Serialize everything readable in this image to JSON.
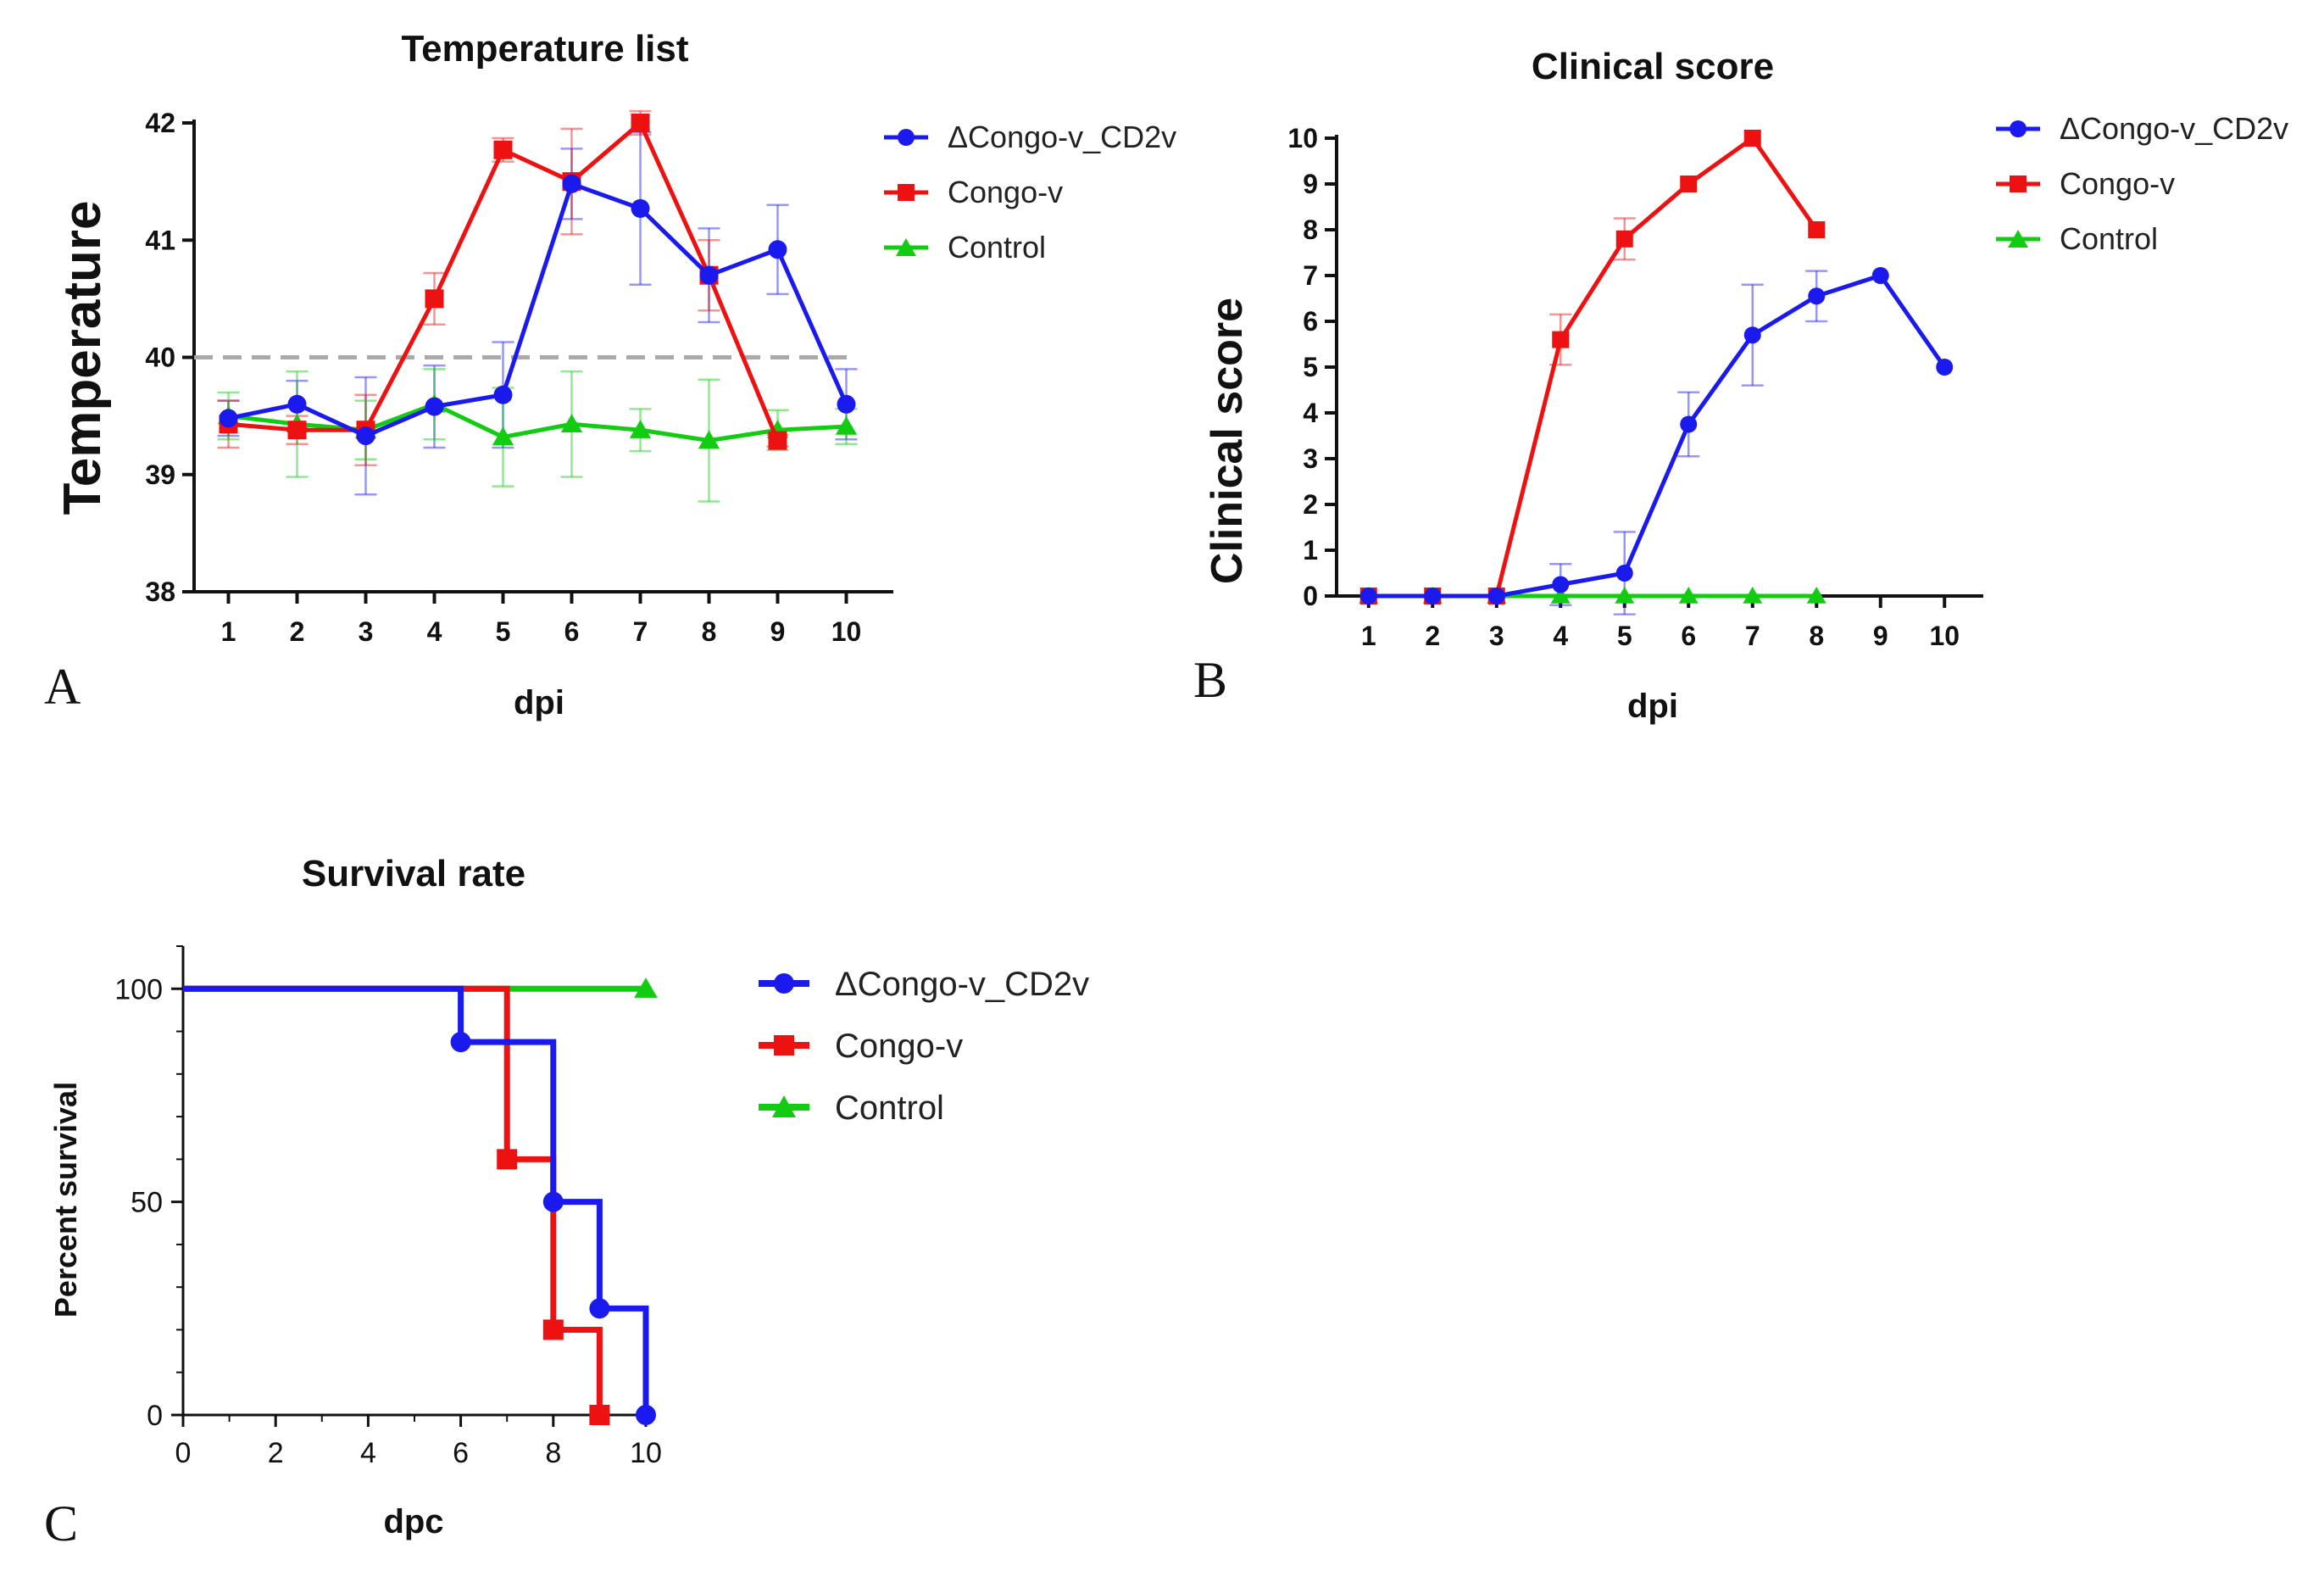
{
  "colors": {
    "blue": "#1a1aee",
    "red": "#ee1111",
    "green": "#11cc11",
    "threshold": "#aaaaaa"
  },
  "legend": [
    "ΔCongo-v_CD2v",
    "Congo-v",
    "Control"
  ],
  "chart_data": [
    {
      "panel": "A",
      "type": "line",
      "title": "Temperature list",
      "xlabel": "dpi",
      "ylabel": "Temperature",
      "categories": [
        "1",
        "2",
        "3",
        "4",
        "5",
        "6",
        "7",
        "8",
        "9",
        "10"
      ],
      "ylim": [
        38,
        42
      ],
      "yticks": [
        "38",
        "39",
        "40",
        "41",
        "42"
      ],
      "reference_line": {
        "y": 40,
        "style": "dashed"
      },
      "series": [
        {
          "name": "ΔCongo-v_CD2v",
          "marker": "circle",
          "color": "blue",
          "x": [
            1,
            2,
            3,
            4,
            5,
            6,
            7,
            8,
            9,
            10
          ],
          "values": [
            39.48,
            39.6,
            39.33,
            39.58,
            39.68,
            41.48,
            41.27,
            40.7,
            40.92,
            39.6
          ],
          "errors": [
            0.15,
            0.2,
            0.5,
            0.35,
            0.45,
            0.3,
            0.65,
            0.4,
            0.38,
            0.3
          ]
        },
        {
          "name": "Congo-v",
          "marker": "square",
          "color": "red",
          "x": [
            1,
            2,
            3,
            4,
            5,
            6,
            7,
            8,
            9
          ],
          "values": [
            39.43,
            39.38,
            39.38,
            40.5,
            41.77,
            41.5,
            42.0,
            40.7,
            39.29
          ],
          "errors": [
            0.2,
            0.12,
            0.3,
            0.22,
            0.1,
            0.45,
            0.1,
            0.3,
            0.05
          ]
        },
        {
          "name": "Control",
          "marker": "triangle",
          "color": "green",
          "x": [
            1,
            2,
            3,
            4,
            5,
            6,
            7,
            8,
            9,
            10
          ],
          "values": [
            39.5,
            39.43,
            39.38,
            39.6,
            39.32,
            39.43,
            39.38,
            39.29,
            39.38,
            39.41
          ],
          "errors": [
            0.2,
            0.45,
            0.25,
            0.3,
            0.42,
            0.45,
            0.18,
            0.52,
            0.17,
            0.15
          ]
        }
      ]
    },
    {
      "panel": "B",
      "type": "line",
      "title": "Clinical score",
      "xlabel": "dpi",
      "ylabel": "Clinical score",
      "categories": [
        "1",
        "2",
        "3",
        "4",
        "5",
        "6",
        "7",
        "8",
        "9",
        "10"
      ],
      "ylim": [
        0,
        10
      ],
      "yticks": [
        "0",
        "1",
        "2",
        "3",
        "4",
        "5",
        "6",
        "7",
        "8",
        "9",
        "10"
      ],
      "series": [
        {
          "name": "ΔCongo-v_CD2v",
          "marker": "circle",
          "color": "blue",
          "x": [
            1,
            2,
            3,
            4,
            5,
            6,
            7,
            8,
            9,
            10
          ],
          "values": [
            0,
            0,
            0,
            0.25,
            0.5,
            3.75,
            5.7,
            6.55,
            7.0,
            5.0
          ],
          "errors": [
            0,
            0,
            0,
            0.45,
            0.9,
            0.7,
            1.1,
            0.55,
            0,
            0
          ]
        },
        {
          "name": "Congo-v",
          "marker": "square",
          "color": "red",
          "x": [
            1,
            2,
            3,
            4,
            5,
            6,
            7,
            8
          ],
          "values": [
            0,
            0,
            0,
            5.6,
            7.8,
            9.0,
            10.0,
            8.0
          ],
          "errors": [
            0,
            0,
            0,
            0.55,
            0.45,
            0,
            0,
            0
          ]
        },
        {
          "name": "Control",
          "marker": "triangle",
          "color": "green",
          "x": [
            1,
            2,
            3,
            4,
            5,
            6,
            7,
            8
          ],
          "values": [
            0,
            0,
            0,
            0,
            0,
            0,
            0,
            0
          ],
          "errors": [
            0,
            0,
            0,
            0,
            0,
            0,
            0,
            0
          ]
        }
      ]
    },
    {
      "panel": "C",
      "type": "step",
      "title": "Survival rate",
      "xlabel": "dpc",
      "ylabel": "Percent survival",
      "xlim": [
        0,
        10
      ],
      "ylim": [
        0,
        110
      ],
      "xticks": [
        "0",
        "2",
        "4",
        "6",
        "8",
        "10"
      ],
      "yticks": [
        "0",
        "50",
        "100"
      ],
      "series": [
        {
          "name": "ΔCongo-v_CD2v",
          "marker": "circle",
          "color": "blue",
          "steps": [
            [
              0,
              100
            ],
            [
              6,
              87.5
            ],
            [
              8,
              50
            ],
            [
              9,
              25
            ],
            [
              10,
              0
            ]
          ],
          "markers": [
            [
              6,
              87.5
            ],
            [
              8,
              50
            ],
            [
              9,
              25
            ],
            [
              10,
              0
            ]
          ]
        },
        {
          "name": "Congo-v",
          "marker": "square",
          "color": "red",
          "steps": [
            [
              0,
              100
            ],
            [
              7,
              60
            ],
            [
              8,
              20
            ],
            [
              9,
              0
            ]
          ],
          "markers": [
            [
              7,
              60
            ],
            [
              8,
              20
            ],
            [
              9,
              0
            ]
          ]
        },
        {
          "name": "Control",
          "marker": "triangle",
          "color": "green",
          "steps": [
            [
              0,
              100
            ],
            [
              10,
              100
            ]
          ],
          "markers": [
            [
              10,
              100
            ]
          ]
        }
      ]
    }
  ],
  "panels": [
    "A",
    "B",
    "C"
  ]
}
